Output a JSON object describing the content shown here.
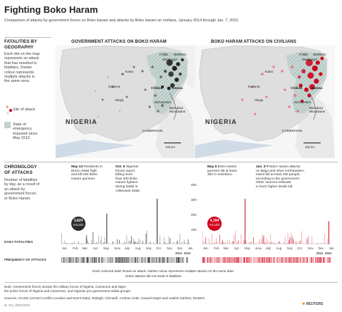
{
  "header": {
    "title": "Fighting Boko Haram",
    "subtitle": "Comparison of attacks by government forces on Boko Haram and attacks by Boko Haram on civilians, January 2014 through Jan. 7, 2015."
  },
  "legend": {
    "heading_line1": "FATALITIES BY",
    "heading_line2": "GEOGRAPHY",
    "description": [
      "Each dot on the map",
      "represents an attack",
      "that has resulted in",
      "fatalities. Darker",
      "colour represents",
      "multiple attacks in",
      "the same area."
    ],
    "site_label": "Site of attack",
    "emergency_label": [
      "State of",
      "emergency",
      "imposed since",
      "May 2013"
    ]
  },
  "maps": {
    "left_title": "GOVERNMENT ATTACKS ON BOKO HARAM",
    "right_title": "BOKO HARAM ATTACKS ON CIVILIANS",
    "places": {
      "yobe": "YOBE",
      "borno": "BORNO",
      "maiduguri": "Maiduguri",
      "kano": "Kano",
      "kaduna": "Kaduna",
      "abuja": "Abuja",
      "chibok": "Chibok",
      "gwoza": "Gwoza",
      "adamawa": "ADAMAWA",
      "mandara": [
        "Mandara",
        "Mountains"
      ],
      "nigeria": "NIGERIA",
      "cameroon": "CAMEROON"
    },
    "scale": "100 km",
    "colors": {
      "gov": "#222222",
      "bh": "#d0021b",
      "land": "#e6e6e6",
      "emergency": "#b7cbc7"
    }
  },
  "chronology": {
    "heading_line1": "CHRONOLOGY",
    "heading_line2": "OF ATTACKS",
    "description": [
      "Number of fatalities",
      "by day, as a result of",
      "an attack by",
      "government forces",
      "or Boko Haram."
    ],
    "gov_killed": {
      "count": "3,820",
      "label": "KILLED"
    },
    "bh_killed": {
      "count": "4,194",
      "label": "KILLED"
    },
    "gov_annotations": [
      {
        "date": "May 13",
        "text": [
          " Residents in",
          "Borno State fight",
          "and kill 200 Boko",
          "Haram gunmen."
        ]
      },
      {
        "date": "Oct. 6",
        "text": [
          " Nigerian",
          "forces report",
          "killing more",
          "than 300 Boko",
          "Haram fighters",
          "during battle in",
          "Adamawa State."
        ]
      }
    ],
    "bh_annotations": [
      {
        "date": "May 5",
        "text": [
          " Boko Haram",
          "gunmen kill at least",
          "300 in Gambaru."
        ]
      },
      {
        "date": "Jan. 3-7",
        "text": [
          " Boko Haram attacks",
          "on Baga and other northeastern",
          "towns kill at least 150 people,",
          "according to the government.",
          "Other sources estimate",
          "a much higher death toll."
        ]
      }
    ],
    "y_ticks": [
      "400",
      "300",
      "200",
      "100"
    ],
    "months": [
      "Jan.",
      "Feb.",
      "Mar.",
      "Apr.",
      "May",
      "June",
      "July",
      "Aug.",
      "Sep.",
      "Oct.",
      "Nov.",
      "Dec.",
      "Jan."
    ],
    "year_2014": "2014",
    "year_2015": "2015",
    "daily_label": "DAILY FATALITIES",
    "frequency_label": "FREQUENCY OF ATTACKS",
    "frequency_note_1": "Each coloured dash shows an attack. Darker colour represents multiple attacks on the same date.",
    "frequency_note_2": "Some attacks did not result in fatalities."
  },
  "chart_data": [
    {
      "type": "bar",
      "title": "Government attacks on Boko Haram — daily fatalities",
      "ylim": [
        0,
        400
      ],
      "x": [
        "2014-01",
        "2014-02",
        "2014-03",
        "2014-04",
        "2014-05",
        "2014-06",
        "2014-07",
        "2014-08",
        "2014-09",
        "2014-10",
        "2014-11",
        "2014-12",
        "2015-01"
      ],
      "highlights": [
        {
          "date": "2014-05-13",
          "value": 200
        },
        {
          "date": "2014-10-06",
          "value": 300
        }
      ],
      "total_killed": 3820
    },
    {
      "type": "bar",
      "title": "Boko Haram attacks on civilians — daily fatalities",
      "ylim": [
        0,
        400
      ],
      "x": [
        "2014-01",
        "2014-02",
        "2014-03",
        "2014-04",
        "2014-05",
        "2014-06",
        "2014-07",
        "2014-08",
        "2014-09",
        "2014-10",
        "2014-11",
        "2014-12",
        "2015-01"
      ],
      "highlights": [
        {
          "date": "2014-05-05",
          "value": 300
        },
        {
          "date": "2015-01-03",
          "value": 150
        }
      ],
      "total_killed": 4194
    }
  ],
  "footer": {
    "note1": "Note: Government forces include the military forces of Nigeria, Cameroon and Niger,",
    "note2": "the police forces of Nigeria and Cameroon, and Nigerian pro-government militia groups.",
    "sources": "Sources: ACLED (Armed Conflict Location and Event Data), Raleigh, Clionadh, Andrew Linke, Havard Hegre and Joakim Karlsen; Reuters.",
    "credit": "M. Yeo, 30/01/2015",
    "brand": "REUTERS"
  }
}
